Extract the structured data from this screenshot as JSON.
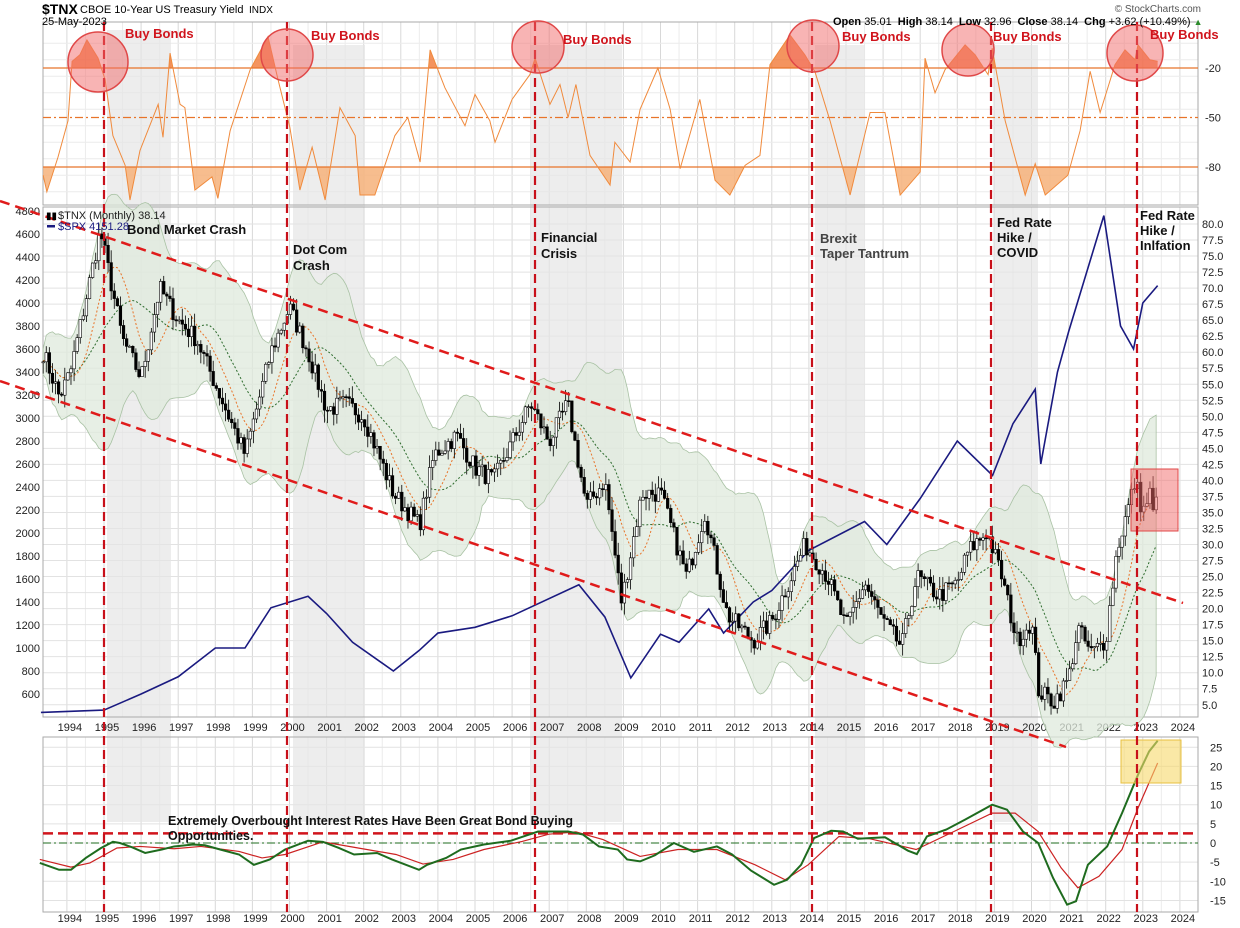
{
  "header": {
    "symbol": "$TNX",
    "name": "CBOE 10-Year US Treasury Yield",
    "exchange": "INDX",
    "date": "25-May-2023",
    "watermark": "© StockCharts.com",
    "open_label": "Open",
    "open": "35.01",
    "high_label": "High",
    "high": "38.14",
    "low_label": "Low",
    "low": "32.96",
    "close_label": "Close",
    "close": "38.14",
    "chg_label": "Chg",
    "chg": "+3.62 (+10.49%)",
    "chg_arrow": "▲"
  },
  "legend": {
    "tnx": "$TNX (Monthly) 38.14",
    "spx": "$SPX 4151.28"
  },
  "annotations": {
    "bond_crash": "Bond Market Crash",
    "dotcom_1": "Dot Com",
    "dotcom_2": "Crash",
    "financial_1": "Financial",
    "financial_2": "Crisis",
    "brexit_1": "Brexit",
    "brexit_2": "Taper Tantrum",
    "covid_1": "Fed Rate",
    "covid_2": "Hike /",
    "covid_3": "COVID",
    "inflation_1": "Fed Rate",
    "inflation_2": "Hike /",
    "inflation_3": "Inlfation",
    "buy_bonds": "Buy Bonds",
    "bottom_note_1": "Extremely Overbought Interest Rates Have Been Great Bond Buying",
    "bottom_note_2": "Opportunities."
  },
  "colors": {
    "tnx": "#000000",
    "spx": "#1a1a80",
    "williams": "#f08a3c",
    "osc_fast": "#1e6b1e",
    "osc_slow": "#cc2222",
    "channel": "#e01b1b",
    "band_fill": "#dfe9dc",
    "highlight_red": "#f26a6a",
    "highlight_yellow": "#f7d96a"
  },
  "chart_data": [
    {
      "type": "area",
      "panel": "top",
      "indicator": "Williams %R style oscillator",
      "yticks": [
        -20,
        -50,
        -80
      ],
      "ylim": [
        -100,
        0
      ],
      "reference_lines": [
        -20,
        -50,
        -80
      ],
      "x": [
        1993.36,
        1993.46,
        1993.76,
        1994.03,
        1994.14,
        1994.35,
        1994.54,
        1994.84,
        1995.03,
        1995.24,
        1995.57,
        1995.7,
        1995.97,
        1996.46,
        1996.59,
        1996.78,
        1997.05,
        1997.18,
        1997.45,
        1997.91,
        1998.07,
        1998.4,
        1998.94,
        1999.42,
        1999.69,
        2000.01,
        2000.28,
        2000.61,
        2000.96,
        2001.36,
        2001.77,
        2001.9,
        2002.3,
        2002.84,
        2003.19,
        2003.52,
        2003.79,
        2004.19,
        2004.73,
        2005.0,
        2005.4,
        2005.54,
        2006.0,
        2006.48,
        2006.62,
        2007.02,
        2007.29,
        2007.51,
        2007.72,
        2008.1,
        2008.64,
        2008.77,
        2009.18,
        2009.45,
        2009.93,
        2010.26,
        2010.53,
        2011.06,
        2011.47,
        2011.87,
        2012.28,
        2012.68,
        2012.95,
        2013.49,
        2013.89,
        2014.16,
        2014.57,
        2015.11,
        2015.65,
        2016.05,
        2016.46,
        2017.0,
        2017.13,
        2017.4,
        2017.67,
        2018.21,
        2018.48,
        2018.83,
        2018.94,
        2019.29,
        2019.83,
        2020.1,
        2020.37,
        2020.98,
        2021.31,
        2021.58,
        2021.85,
        2022.25,
        2022.52,
        2022.79,
        2022.87,
        2023.19,
        2023.4
      ],
      "values": [
        -85,
        -95,
        -74,
        -52,
        -16,
        -12,
        -3,
        -14,
        -27,
        -61,
        -79,
        -100,
        -70,
        -42,
        -62,
        -11,
        -42,
        -44,
        -94,
        -86,
        -99,
        -58,
        -21,
        -1,
        -27,
        -56,
        -94,
        -68,
        -100,
        -44,
        -61,
        -97,
        -97,
        -61,
        -50,
        -77,
        -9,
        -32,
        -55,
        -36,
        -52,
        -65,
        -39,
        -24,
        -14,
        -42,
        -30,
        -50,
        -30,
        -73,
        -91,
        -65,
        -77,
        -45,
        -20,
        -45,
        -81,
        -39,
        -88,
        -97,
        -79,
        -73,
        -18,
        0,
        -12,
        -22,
        -52,
        -97,
        -47,
        -47,
        -97,
        -83,
        -14,
        -35,
        -21,
        -6,
        -12,
        -24,
        -8,
        -52,
        -97,
        -78,
        -97,
        -85,
        -58,
        -22,
        -47,
        -18,
        -9,
        -15,
        -6,
        -15,
        -16
      ]
    },
    {
      "type": "line",
      "panel": "main",
      "xticks": [
        1994,
        1995,
        1996,
        1997,
        1998,
        1999,
        2000,
        2001,
        2002,
        2003,
        2004,
        2005,
        2006,
        2007,
        2008,
        2009,
        2010,
        2011,
        2012,
        2013,
        2014,
        2015,
        2016,
        2017,
        2018,
        2019,
        2020,
        2021,
        2022,
        2023,
        2024
      ],
      "left_yticks": [
        600,
        800,
        1000,
        1200,
        1400,
        1600,
        1800,
        2000,
        2200,
        2400,
        2600,
        2800,
        3000,
        3200,
        3400,
        3600,
        3800,
        4000,
        4200,
        4400,
        4600,
        4800
      ],
      "right_yticks": [
        "80.0",
        "77.5",
        "75.0",
        "72.5",
        "70.0",
        "67.5",
        "65.0",
        "62.5",
        "60.0",
        "57.5",
        "55.0",
        "52.5",
        "50.0",
        "47.5",
        "45.0",
        "42.5",
        "40.0",
        "37.5",
        "35.0",
        "32.5",
        "30.0",
        "27.5",
        "25.0",
        "22.5",
        "20.0",
        "17.5",
        "15.0",
        "12.5",
        "10.0",
        "7.5",
        "5.0"
      ],
      "left_ylim": [
        450,
        4800
      ],
      "right_ylim": [
        3,
        80
      ],
      "series": [
        {
          "name": "$TNX (Monthly)",
          "axis": "right",
          "style": "candlestick",
          "x": [
            1993.36,
            1993.8,
            1994.1,
            1994.9,
            1995.5,
            1996.0,
            1996.5,
            1997.0,
            1997.5,
            1998.0,
            1998.8,
            1999.5,
            2000.0,
            2000.5,
            2001.0,
            2001.5,
            2002.0,
            2002.8,
            2003.5,
            2003.9,
            2004.5,
            2005.0,
            2005.5,
            2006.5,
            2007.0,
            2007.5,
            2008.0,
            2008.5,
            2008.95,
            2009.5,
            2010.0,
            2010.7,
            2011.2,
            2011.8,
            2012.5,
            2013.0,
            2013.9,
            2014.5,
            2015.0,
            2015.5,
            2016.0,
            2016.5,
            2016.9,
            2017.5,
            2018.0,
            2018.3,
            2018.8,
            2019.2,
            2019.6,
            2020.0,
            2020.2,
            2020.6,
            2021.0,
            2021.25,
            2021.6,
            2022.0,
            2022.3,
            2022.8,
            2023.0,
            2023.2,
            2023.3,
            2023.4
          ],
          "values": [
            60,
            53,
            57,
            79,
            62,
            56,
            70,
            65,
            62,
            55,
            44,
            60,
            67,
            60,
            51,
            52,
            50,
            38,
            33,
            44,
            47,
            42,
            40,
            52,
            46,
            52,
            36,
            40,
            21,
            38,
            38,
            25,
            35,
            19,
            15,
            18,
            30,
            25,
            17,
            24,
            18,
            14,
            25,
            22,
            24,
            29,
            32,
            25,
            15,
            18,
            7,
            5.5,
            9,
            17,
            13,
            15,
            29,
            40,
            35,
            38,
            34,
            38.14
          ]
        },
        {
          "name": "$SPX",
          "axis": "left",
          "style": "line",
          "x": [
            1993.3,
            1995.0,
            1996.0,
            1997.0,
            1998.0,
            1998.8,
            1999.5,
            2000.5,
            2001.0,
            2001.7,
            2002.8,
            2003.5,
            2004.0,
            2005.0,
            2006.0,
            2007.8,
            2008.5,
            2009.2,
            2010.0,
            2010.5,
            2011.3,
            2011.7,
            2012.5,
            2013.0,
            2014.0,
            2015.5,
            2016.1,
            2017.0,
            2018.0,
            2018.95,
            2019.5,
            2020.1,
            2020.25,
            2020.7,
            2021.0,
            2021.95,
            2022.4,
            2022.75,
            2023.0,
            2023.4
          ],
          "values": [
            440,
            460,
            600,
            750,
            1000,
            1000,
            1350,
            1450,
            1300,
            1050,
            800,
            980,
            1130,
            1180,
            1280,
            1550,
            1270,
            740,
            1120,
            1050,
            1340,
            1130,
            1400,
            1500,
            1850,
            2100,
            1900,
            2300,
            2800,
            2500,
            2950,
            3250,
            2600,
            3400,
            3750,
            4760,
            3800,
            3600,
            4000,
            4151.28
          ]
        }
      ]
    },
    {
      "type": "line",
      "panel": "bottom",
      "yticks": [
        25,
        20,
        15,
        10,
        5,
        0,
        -5,
        -10,
        -15
      ],
      "ylim": [
        -18,
        27
      ],
      "reference_lines": [
        2.5,
        0
      ],
      "series": [
        {
          "x": [
            1993.27,
            1993.79,
            1994.11,
            1994.51,
            1994.92,
            1995.24,
            1995.43,
            1995.75,
            1996.11,
            1996.56,
            1996.89,
            1997.4,
            1997.72,
            1998.13,
            1998.64,
            1999.04,
            1999.47,
            1999.88,
            2000.5,
            2000.9,
            2001.33,
            2001.74,
            2002.36,
            2002.76,
            2003.49,
            2003.71,
            2004.22,
            2004.62,
            2005.24,
            2005.97,
            2006.7,
            2007.51,
            2007.91,
            2008.34,
            2008.85,
            2009.1,
            2009.45,
            2009.85,
            2010.36,
            2010.9,
            2011.52,
            2011.93,
            2012.44,
            2013.06,
            2013.41,
            2013.79,
            2014.14,
            2014.6,
            2014.92,
            2015.32,
            2016.05,
            2016.67,
            2016.91,
            2017.18,
            2017.7,
            2018.21,
            2018.94,
            2019.34,
            2019.77,
            2020.18,
            2020.58,
            2020.96,
            2021.2,
            2021.52,
            2022.04,
            2022.44,
            2022.87,
            2023.17,
            2023.4
          ],
          "values": [
            -5.2,
            -7.0,
            -7.0,
            -3.9,
            -1.3,
            0.3,
            0,
            -1.1,
            -2.6,
            -1.7,
            -0.9,
            -0.4,
            -0.6,
            -1.7,
            -3.0,
            -5.7,
            -4.3,
            -1.7,
            0.6,
            0.3,
            -1.3,
            -3.0,
            -2.6,
            -4.3,
            -7.0,
            -5.7,
            -3.9,
            -1.7,
            -0.4,
            0.6,
            3.0,
            3.0,
            2.2,
            -0.9,
            -1.7,
            -4.3,
            -4.8,
            -3.2,
            0,
            -2.3,
            -0.9,
            -3.0,
            -7.2,
            -10.9,
            -9.6,
            -5.7,
            1.3,
            3.2,
            3.0,
            1.1,
            1.5,
            -2.0,
            -2.9,
            1.7,
            3.5,
            6.1,
            10,
            8.7,
            3.0,
            0,
            -9.1,
            -16.1,
            -15.2,
            -5.7,
            -0.9,
            7.8,
            17.8,
            23.9,
            26.7
          ]
        },
        {
          "x": [
            1993.27,
            1994.11,
            1994.62,
            1995.35,
            1995.97,
            1996.89,
            1997.61,
            1998.64,
            1999.26,
            1999.88,
            2000.9,
            2001.85,
            2002.87,
            2003.6,
            2004.41,
            2005.24,
            2006.27,
            2006.99,
            2007.72,
            2008.45,
            2009.45,
            2010.47,
            2011.52,
            2012.55,
            2013.36,
            2013.98,
            2014.81,
            2015.65,
            2016.89,
            2017.91,
            2018.94,
            2019.56,
            2020.18,
            2020.8,
            2021.25,
            2021.82,
            2022.44,
            2022.87,
            2023.4
          ],
          "values": [
            -4.3,
            -6.3,
            -5.2,
            -1.3,
            -0.9,
            -1.5,
            -0.9,
            -2.2,
            -3.9,
            -3.0,
            0.3,
            -1.3,
            -3.0,
            -5.5,
            -4.3,
            -1.7,
            0.4,
            2.3,
            2.9,
            0.9,
            -3.5,
            -1.7,
            -1.7,
            -5.7,
            -9.6,
            -5.7,
            1.7,
            1.1,
            -1.7,
            3.0,
            7.8,
            7.8,
            3.0,
            -6.5,
            -11.7,
            -8.7,
            -1.7,
            9.1,
            20.9
          ]
        }
      ]
    }
  ]
}
